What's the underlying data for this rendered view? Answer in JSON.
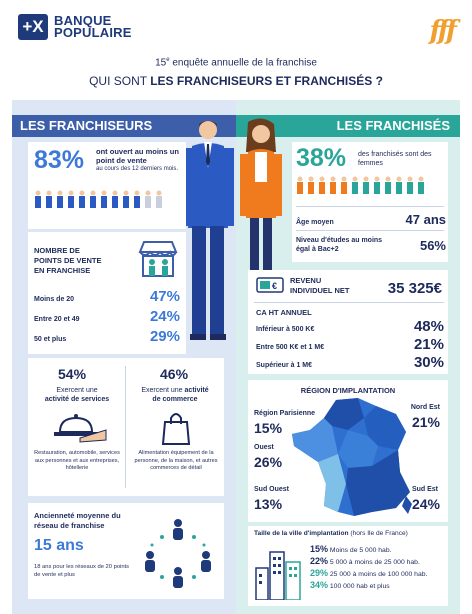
{
  "header": {
    "logo_mark": "+X",
    "logo_line1": "BANQUE",
    "logo_line2": "POPULAIRE",
    "fff_logo": "fff",
    "edition_prefix": "15",
    "edition_sup": "e",
    "edition_rest": " enquête annuelle de la franchise",
    "title_prefix": "QUI SONT ",
    "title_bold": "LES FRANCHISEURS ET FRANCHISÉS ?"
  },
  "franchiseurs": {
    "heading": "LES FRANCHISEURS",
    "point_vente_pct": "83%",
    "point_vente_text": "ont ouvert au moins un point de vente",
    "point_vente_sub": "au cours des 12 derniers mois.",
    "nb_points_title": "NOMBRE DE POINTS DE VENTE EN FRANCHISE",
    "nb_points": [
      {
        "label": "Moins de 20",
        "value": "47%"
      },
      {
        "label": "Entre 20 et 49",
        "value": "24%"
      },
      {
        "label": "50 et plus",
        "value": "29%"
      }
    ],
    "services_pct": "54%",
    "services_text1": "Exercent une",
    "services_text2": "activité de services",
    "services_desc": "Restauration, automobile, services aux personnes et aux entreprises, hôtellerie",
    "commerce_pct": "46%",
    "commerce_text1": "Exercent une",
    "commerce_text2": "activité",
    "commerce_text3": "de commerce",
    "commerce_desc": "Alimentation équipement de la personne, de la maison, et autres commerces de détail",
    "anciennete_title": "Ancienneté moyenne du réseau de franchise",
    "anciennete_value": "15 ans",
    "anciennete_desc": "18 ans pour les réseaux de 20 points de vente et plus"
  },
  "franchises": {
    "heading": "LES FRANCHISÉS",
    "femmes_pct": "38%",
    "femmes_text": "des franchisés sont des femmes",
    "age_label": "Âge moyen",
    "age_value": "47 ans",
    "etudes_label": "Niveau d'études au moins égal à Bac+2",
    "etudes_value": "56%",
    "revenu_label": "REVENU INDIVIDUEL NET",
    "revenu_value": "35 325€",
    "ca_title": "CA HT ANNUEL",
    "ca": [
      {
        "label": "Inférieur à 500 K€",
        "value": "48%"
      },
      {
        "label": "Entre 500 K€ et 1 M€",
        "value": "21%"
      },
      {
        "label": "Supérieur à 1 M€",
        "value": "30%"
      }
    ],
    "region_title": "RÉGION D'IMPLANTATION",
    "regions": {
      "parisienne_label": "Région Parisienne",
      "parisienne_value": "15%",
      "nordest_label": "Nord Est",
      "nordest_value": "21%",
      "ouest_label": "Ouest",
      "ouest_value": "26%",
      "sudouest_label": "Sud Ouest",
      "sudouest_value": "13%",
      "sudest_label": "Sud Est",
      "sudest_value": "24%"
    },
    "ville_title_bold": "Taille de la ville d'implantation",
    "ville_title_rest": " (hors Ile de France)",
    "villes": [
      {
        "value": "15%",
        "label": "Moins de 5 000 hab."
      },
      {
        "value": "22%",
        "label": "5 000 à moins de 25 000 hab."
      },
      {
        "value": "29%",
        "label": "25 000 à moins de 100 000 hab."
      },
      {
        "value": "34%",
        "label": "100 000 hab et plus"
      }
    ]
  },
  "colors": {
    "left_accent": "#3d5ea8",
    "right_accent": "#2aa59a",
    "blue_value": "#3d7ad8",
    "navy": "#1d2a5b"
  }
}
